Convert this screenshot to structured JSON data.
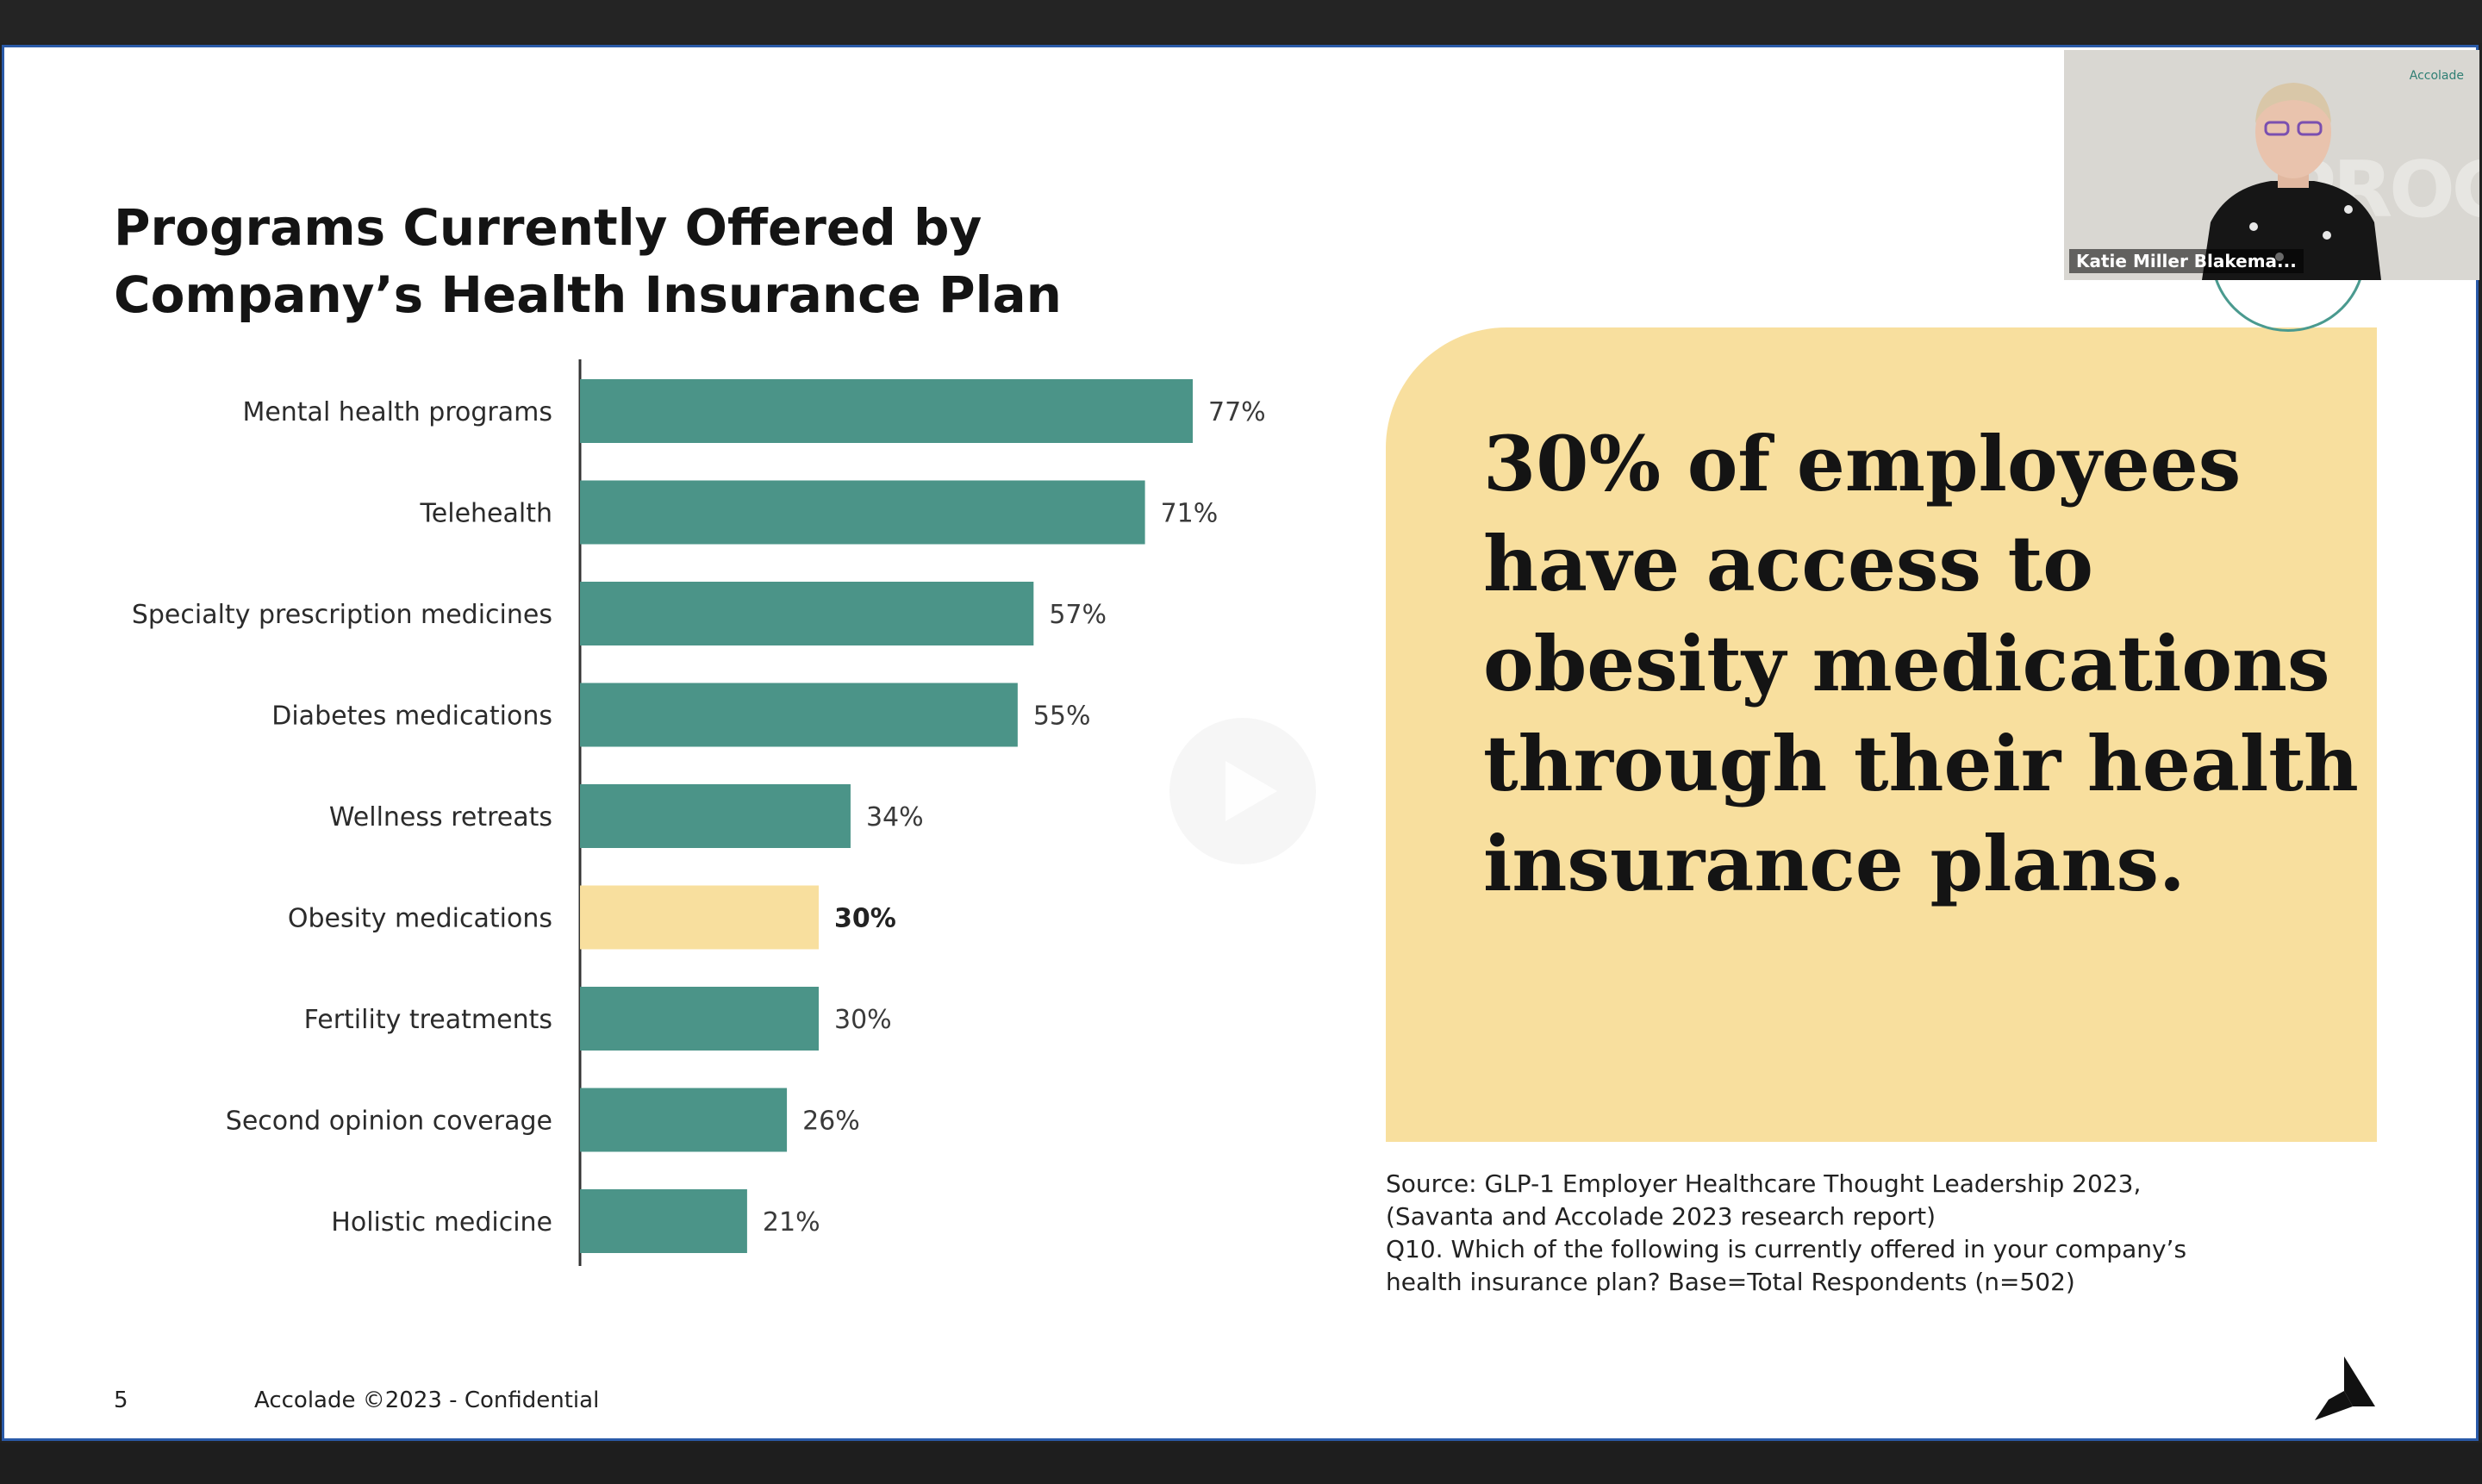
{
  "slide": {
    "title_line1": "Programs Currently Offered by",
    "title_line2": "Company’s Health Insurance Plan",
    "callout_text": "30% of employees have access to obesity medications through their health insurance plans.",
    "source_line1": "Source: GLP-1 Employer Healthcare Thought Leadership 2023,",
    "source_line2": "(Savanta and Accolade 2023 research report)",
    "source_line3": "Q10. Which of the following is currently offered in your company’s",
    "source_line4": "health insurance plan? Base=Total Respondents (n=502)",
    "page_number": "5",
    "footer_text": "Accolade ©2023 - Confidential"
  },
  "video_tile": {
    "participant_name": "Katie Miller Blakema...",
    "logo_text": "Accolade"
  },
  "icons": {
    "play": "play-icon",
    "brand_logo": "accolade-logo-icon"
  },
  "colors": {
    "bar": "#4b9488",
    "highlight_bar": "#f8df9e",
    "callout_bg": "#f8df9e",
    "slide_border": "#2a5aa8"
  },
  "chart_data": {
    "type": "bar",
    "orientation": "horizontal",
    "categories": [
      "Mental health programs",
      "Telehealth",
      "Specialty prescription medicines",
      "Diabetes medications",
      "Wellness retreats",
      "Obesity medications",
      "Fertility treatments",
      "Second opinion coverage",
      "Holistic medicine"
    ],
    "values": [
      77,
      71,
      57,
      55,
      34,
      30,
      30,
      26,
      21
    ],
    "value_labels": [
      "77%",
      "71%",
      "57%",
      "55%",
      "34%",
      "30%",
      "30%",
      "26%",
      "21%"
    ],
    "highlight": "Obesity medications",
    "xlim": [
      0,
      100
    ],
    "grid": false,
    "legend": "none"
  }
}
